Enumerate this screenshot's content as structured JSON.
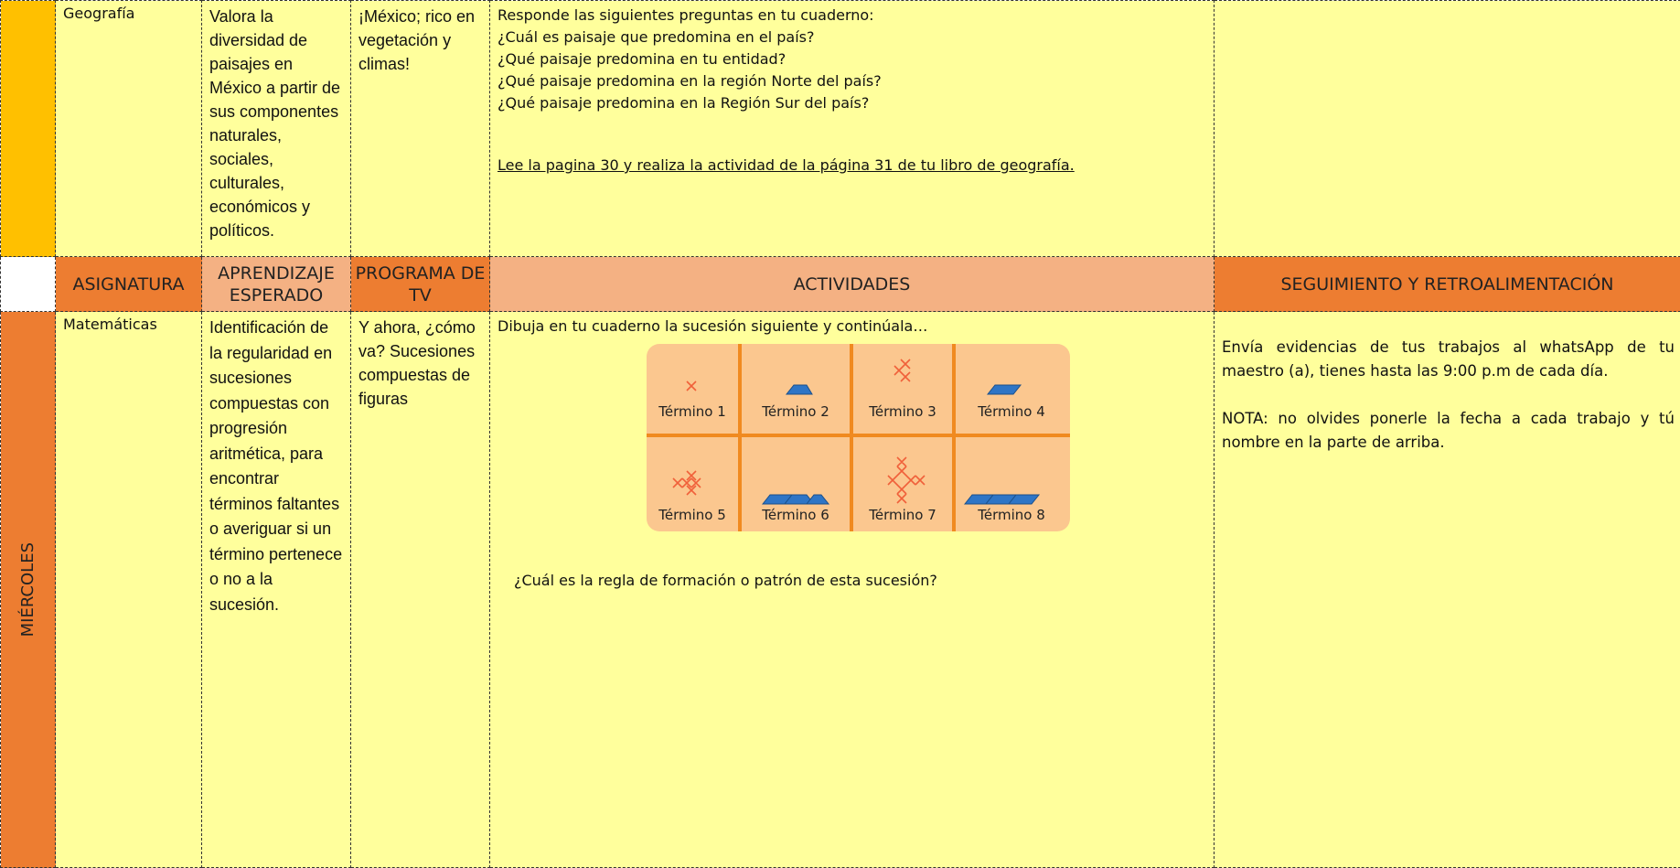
{
  "geografia": {
    "subject": "Geografía",
    "learning": "Valora la diversidad de paisajes en México a partir de sus componentes naturales, sociales, culturales, económicos y políticos.",
    "tv_program": "¡México; rico en vegetación y climas!",
    "activities": [
      "Responde las siguientes preguntas en tu cuaderno:",
      "¿Cuál es paisaje que predomina en el país?",
      "¿Qué paisaje predomina en tu entidad?",
      "¿Qué paisaje predomina en la región Norte del país?",
      "¿Qué paisaje predomina en la Región Sur del país?"
    ],
    "activity_link": "Lee la pagina 30 y realiza la actividad de la página 31 de tu libro de geografía."
  },
  "header": [
    "ASIGNATURA",
    "APRENDIZAJE ESPERADO",
    "PROGRAMA DE TV",
    "ACTIVIDADES",
    "SEGUIMIENTO Y RETROALIMENTACIÓN"
  ],
  "matematicas": {
    "day": "MIÉRCOLES",
    "subject": "Matemáticas",
    "learning": "Identificación de la regularidad en sucesiones compuestas con progresión aritmética, para encontrar términos faltantes o averiguar si un término pertenece o no a la sucesión.",
    "tv_program": "Y ahora, ¿cómo va? Sucesiones compuestas de figuras",
    "activities_intro": "Dibuja en tu cuaderno la sucesión siguiente y continúala…",
    "terms": [
      "Término 1",
      "Término 2",
      "Término 3",
      "Término 4",
      "Término 5",
      "Término 6",
      "Término 7",
      "Término 8"
    ],
    "question": "¿Cuál es la regla de formación o patrón de esta sucesión?",
    "followup": [
      "Envía evidencias de tus trabajos al whatsApp de tu maestro (a), tienes hasta las 9:00 p.m de cada día.",
      "NOTA: no olvides ponerle la fecha a cada trabajo y tú nombre en la parte de arriba."
    ]
  }
}
